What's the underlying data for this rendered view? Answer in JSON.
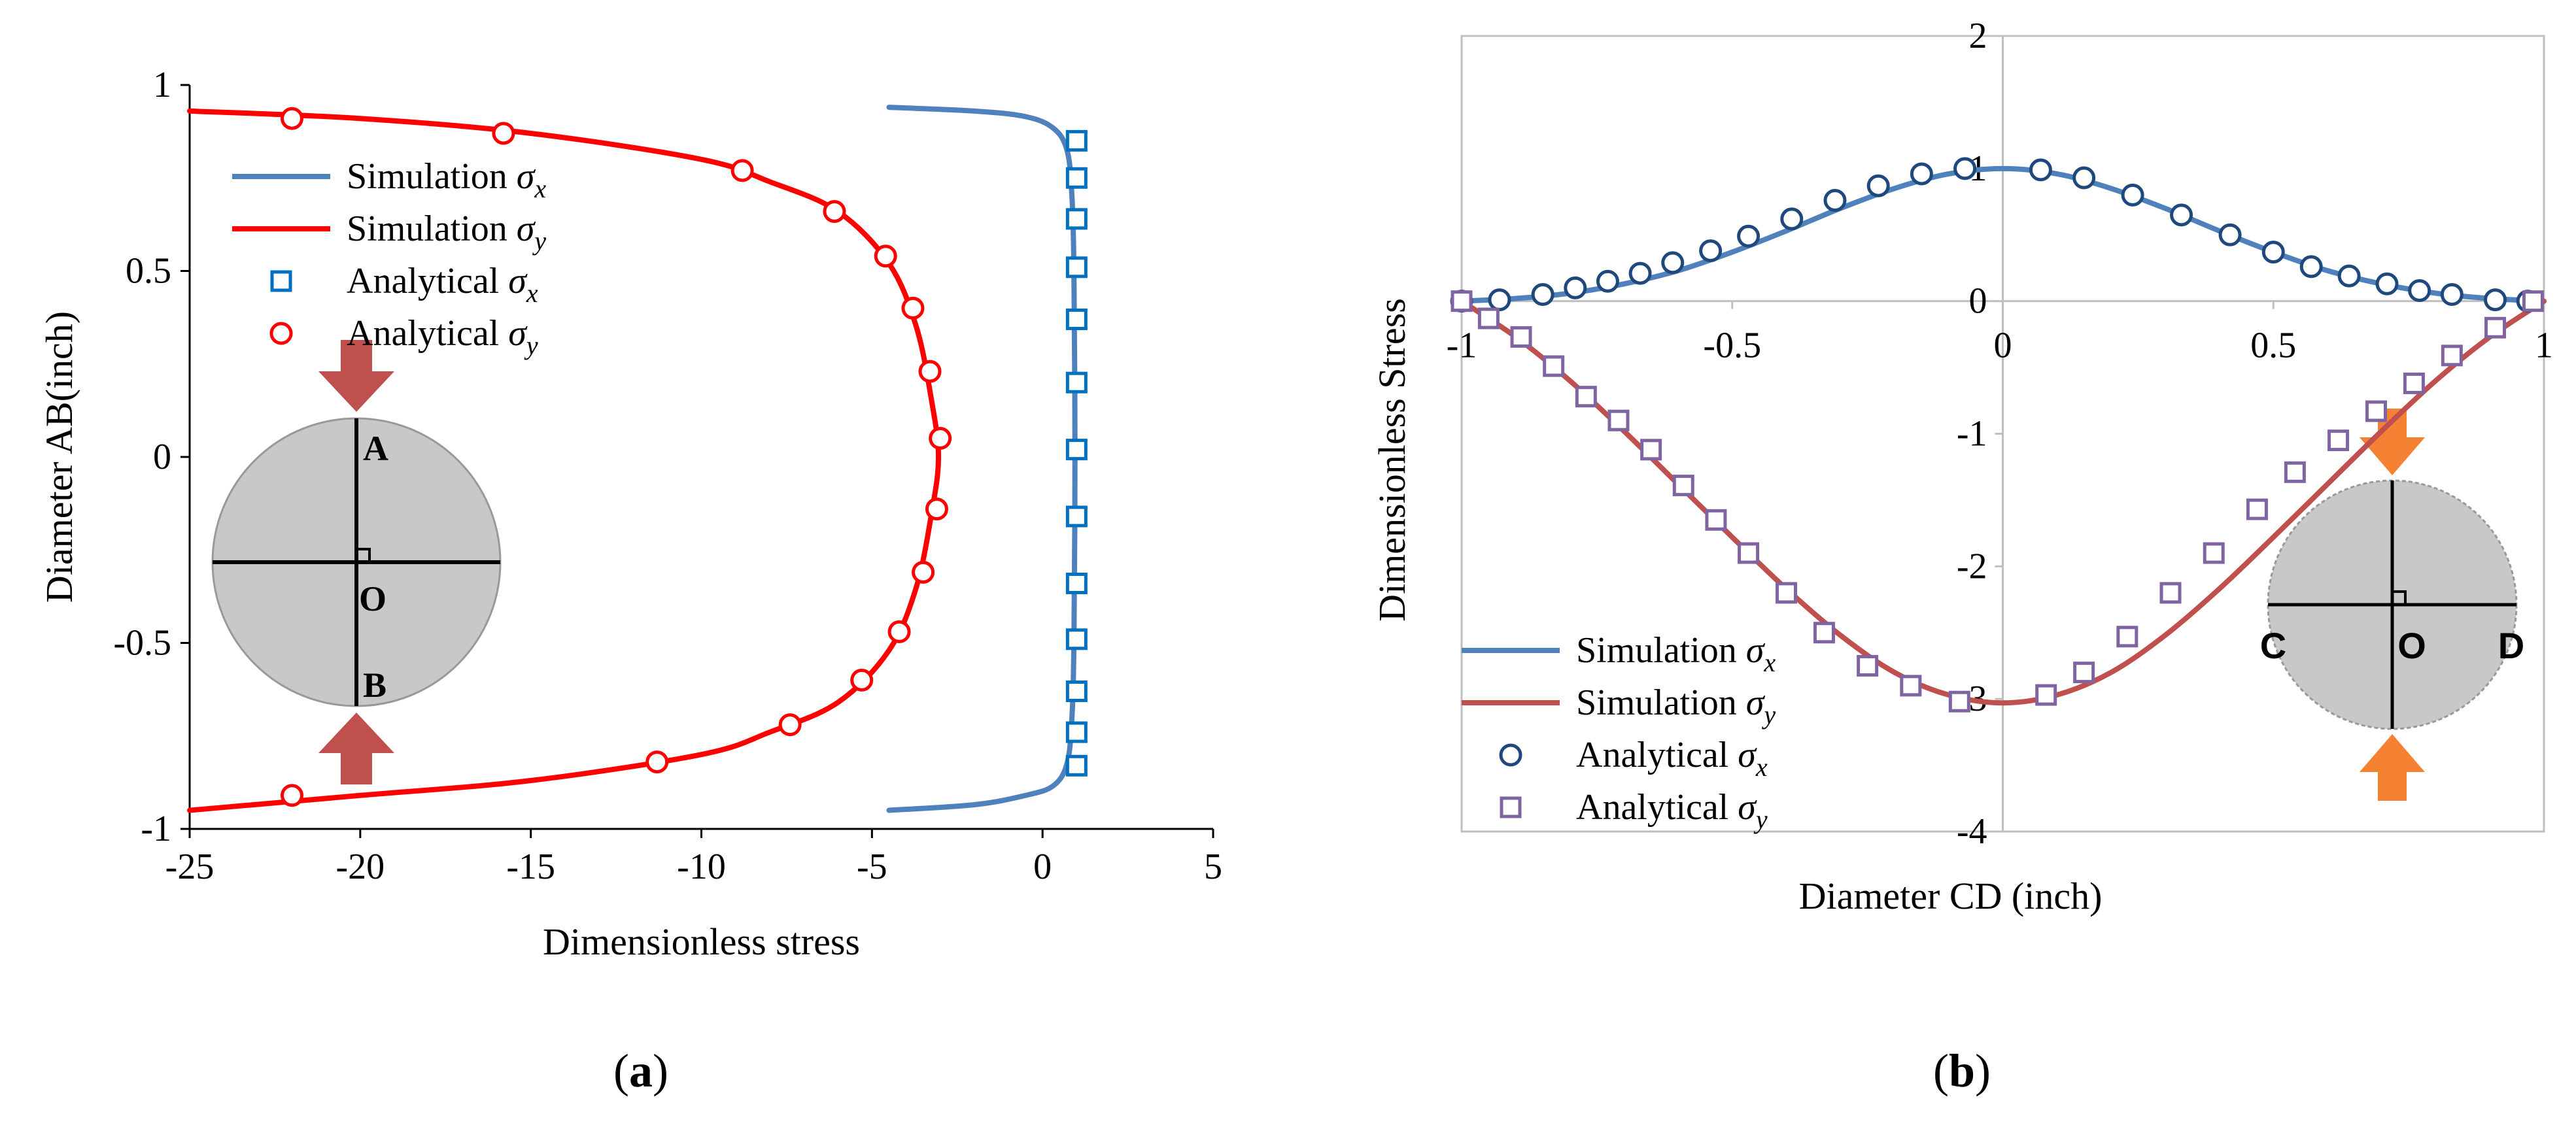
{
  "chart_data": [
    {
      "panel": "a",
      "type": "line",
      "panel_label": "a",
      "xlabel": "Dimensionless stress",
      "ylabel": "Diameter AB(inch)",
      "xlim": [
        -25,
        5
      ],
      "ylim": [
        -1,
        1
      ],
      "xticks": [
        "-25",
        "-20",
        "-15",
        "-10",
        "-5",
        "0",
        "5"
      ],
      "yticks": [
        "1",
        "0.5",
        "0",
        "-0.5",
        "-1"
      ],
      "xtick_values": [
        -25,
        -20,
        -15,
        -10,
        -5,
        0,
        5
      ],
      "ytick_values": [
        1,
        0.5,
        0,
        -0.5,
        -1
      ],
      "grid": false,
      "legend_position": "left",
      "legend": [
        {
          "label": "Simulation ",
          "sym": "σ",
          "sub": "x",
          "kind": "line",
          "color": "#4f81bd"
        },
        {
          "label": "Simulation ",
          "sym": "σ",
          "sub": "y",
          "kind": "line",
          "color": "#ff0000"
        },
        {
          "label": "Analytical ",
          "sym": "σ",
          "sub": "x",
          "kind": "square",
          "color": "#0070c0"
        },
        {
          "label": "Analytical ",
          "sym": "σ",
          "sub": "y",
          "kind": "circle",
          "color": "#ff0000"
        }
      ],
      "series": [
        {
          "name": "Simulation σx",
          "kind": "line",
          "color": "#4f81bd",
          "points": [
            [
              -4.5,
              0.94
            ],
            [
              -2,
              0.93
            ],
            [
              -0.5,
              0.915
            ],
            [
              0.3,
              0.885
            ],
            [
              0.7,
              0.83
            ],
            [
              0.85,
              0.72
            ],
            [
              0.92,
              0.5
            ],
            [
              0.95,
              0
            ],
            [
              0.92,
              -0.5
            ],
            [
              0.85,
              -0.72
            ],
            [
              0.7,
              -0.83
            ],
            [
              0.3,
              -0.885
            ],
            [
              -0.5,
              -0.91
            ],
            [
              -2,
              -0.935
            ],
            [
              -4.5,
              -0.95
            ]
          ]
        },
        {
          "name": "Simulation σy",
          "kind": "line",
          "color": "#ff0000",
          "points": [
            [
              -25,
              0.93
            ],
            [
              -20,
              0.91
            ],
            [
              -15,
              0.87
            ],
            [
              -10,
              0.8
            ],
            [
              -8,
              0.74
            ],
            [
              -6,
              0.66
            ],
            [
              -4.5,
              0.52
            ],
            [
              -3.7,
              0.35
            ],
            [
              -3.25,
              0.15
            ],
            [
              -3.05,
              0
            ],
            [
              -3.25,
              -0.15
            ],
            [
              -3.7,
              -0.35
            ],
            [
              -4.5,
              -0.52
            ],
            [
              -6,
              -0.66
            ],
            [
              -8,
              -0.74
            ],
            [
              -10,
              -0.8
            ],
            [
              -15,
              -0.87
            ],
            [
              -20,
              -0.91
            ],
            [
              -25,
              -0.95
            ]
          ]
        },
        {
          "name": "Analytical σx",
          "kind": "square",
          "color": "#0070c0",
          "points": [
            [
              1,
              0.85
            ],
            [
              1,
              0.75
            ],
            [
              1,
              0.64
            ],
            [
              1,
              0.51
            ],
            [
              1,
              0.37
            ],
            [
              1,
              0.2
            ],
            [
              1,
              0.02
            ],
            [
              1,
              -0.16
            ],
            [
              1,
              -0.34
            ],
            [
              1,
              -0.49
            ],
            [
              1,
              -0.63
            ],
            [
              1,
              -0.74
            ],
            [
              1,
              -0.83
            ]
          ]
        },
        {
          "name": "Analytical σy",
          "kind": "circle",
          "color": "#ff0000",
          "points": [
            [
              -22,
              0.91
            ],
            [
              -15.8,
              0.87
            ],
            [
              -8.8,
              0.77
            ],
            [
              -6.1,
              0.66
            ],
            [
              -4.6,
              0.54
            ],
            [
              -3.8,
              0.4
            ],
            [
              -3.3,
              0.23
            ],
            [
              -3.0,
              0.05
            ],
            [
              -3.1,
              -0.14
            ],
            [
              -3.5,
              -0.31
            ],
            [
              -4.2,
              -0.47
            ],
            [
              -5.3,
              -0.6
            ],
            [
              -7.4,
              -0.72
            ],
            [
              -11.3,
              -0.82
            ],
            [
              -22,
              -0.91
            ]
          ]
        }
      ],
      "inset": {
        "labels": {
          "top": "A",
          "center": "O",
          "bottom": "B"
        },
        "arrow_color": "#c0504d",
        "disk_color": "#c8c8c8"
      }
    },
    {
      "panel": "b",
      "type": "line",
      "panel_label": "b",
      "xlabel": "Diameter CD (inch)",
      "ylabel": "Dimensionless Stress",
      "xlim": [
        -1,
        1
      ],
      "ylim": [
        -4,
        2
      ],
      "xticks": [
        "-1",
        "-0.5",
        "0",
        "0.5",
        "1"
      ],
      "yticks": [
        "2",
        "1",
        "0",
        "-1",
        "-2",
        "-3",
        "-4"
      ],
      "xtick_values": [
        -1,
        -0.5,
        0,
        0.5,
        1
      ],
      "ytick_values": [
        2,
        1,
        0,
        -1,
        -2,
        -3,
        -4
      ],
      "grid": false,
      "legend_position": "bottom-left",
      "legend": [
        {
          "label": "Simulation ",
          "sym": "σ",
          "sub": "x",
          "kind": "line",
          "color": "#4f81bd"
        },
        {
          "label": "Simulation ",
          "sym": "σ",
          "sub": "y",
          "kind": "line",
          "color": "#c0504d"
        },
        {
          "label": "Analytical ",
          "sym": "σ",
          "sub": "x",
          "kind": "circle",
          "color": "#1f497d"
        },
        {
          "label": "Analytical ",
          "sym": "σ",
          "sub": "y",
          "kind": "square",
          "color": "#8064a2"
        }
      ],
      "series": [
        {
          "name": "Simulation σx",
          "kind": "line",
          "color": "#4f81bd",
          "points": [
            [
              -1,
              0
            ],
            [
              -0.9,
              0.02
            ],
            [
              -0.8,
              0.06
            ],
            [
              -0.7,
              0.13
            ],
            [
              -0.6,
              0.23
            ],
            [
              -0.5,
              0.37
            ],
            [
              -0.4,
              0.53
            ],
            [
              -0.3,
              0.7
            ],
            [
              -0.2,
              0.85
            ],
            [
              -0.1,
              0.96
            ],
            [
              0,
              1
            ],
            [
              0.1,
              0.96
            ],
            [
              0.2,
              0.85
            ],
            [
              0.3,
              0.7
            ],
            [
              0.4,
              0.53
            ],
            [
              0.5,
              0.37
            ],
            [
              0.6,
              0.23
            ],
            [
              0.7,
              0.13
            ],
            [
              0.8,
              0.06
            ],
            [
              0.9,
              0.02
            ],
            [
              1,
              0
            ]
          ]
        },
        {
          "name": "Simulation σy",
          "kind": "line",
          "color": "#c0504d",
          "points": [
            [
              -1,
              0
            ],
            [
              -0.9,
              -0.27
            ],
            [
              -0.8,
              -0.6
            ],
            [
              -0.7,
              -0.98
            ],
            [
              -0.6,
              -1.38
            ],
            [
              -0.5,
              -1.78
            ],
            [
              -0.4,
              -2.17
            ],
            [
              -0.3,
              -2.52
            ],
            [
              -0.2,
              -2.8
            ],
            [
              -0.1,
              -2.97
            ],
            [
              0,
              -3.03
            ],
            [
              0.1,
              -2.97
            ],
            [
              0.2,
              -2.8
            ],
            [
              0.3,
              -2.52
            ],
            [
              0.4,
              -2.17
            ],
            [
              0.5,
              -1.78
            ],
            [
              0.6,
              -1.38
            ],
            [
              0.7,
              -0.98
            ],
            [
              0.8,
              -0.6
            ],
            [
              0.9,
              -0.27
            ],
            [
              1,
              0
            ]
          ]
        },
        {
          "name": "Analytical σx",
          "kind": "circle",
          "color": "#1f497d",
          "points": [
            [
              -1,
              0
            ],
            [
              -0.93,
              0.01
            ],
            [
              -0.85,
              0.05
            ],
            [
              -0.79,
              0.1
            ],
            [
              -0.73,
              0.15
            ],
            [
              -0.67,
              0.21
            ],
            [
              -0.61,
              0.29
            ],
            [
              -0.54,
              0.38
            ],
            [
              -0.47,
              0.49
            ],
            [
              -0.39,
              0.62
            ],
            [
              -0.31,
              0.76
            ],
            [
              -0.23,
              0.87
            ],
            [
              -0.15,
              0.96
            ],
            [
              -0.07,
              1
            ],
            [
              0.07,
              0.99
            ],
            [
              0.15,
              0.93
            ],
            [
              0.24,
              0.8
            ],
            [
              0.33,
              0.65
            ],
            [
              0.42,
              0.5
            ],
            [
              0.5,
              0.37
            ],
            [
              0.57,
              0.26
            ],
            [
              0.64,
              0.19
            ],
            [
              0.71,
              0.13
            ],
            [
              0.77,
              0.08
            ],
            [
              0.83,
              0.05
            ],
            [
              0.91,
              0.01
            ],
            [
              0.97,
              0
            ]
          ]
        },
        {
          "name": "Analytical σy",
          "kind": "square",
          "color": "#8064a2",
          "points": [
            [
              -1,
              0
            ],
            [
              -0.95,
              -0.13
            ],
            [
              -0.89,
              -0.27
            ],
            [
              -0.83,
              -0.49
            ],
            [
              -0.77,
              -0.72
            ],
            [
              -0.71,
              -0.9
            ],
            [
              -0.65,
              -1.12
            ],
            [
              -0.59,
              -1.39
            ],
            [
              -0.53,
              -1.65
            ],
            [
              -0.47,
              -1.9
            ],
            [
              -0.4,
              -2.2
            ],
            [
              -0.33,
              -2.5
            ],
            [
              -0.25,
              -2.75
            ],
            [
              -0.17,
              -2.9
            ],
            [
              -0.08,
              -3.02
            ],
            [
              0.08,
              -2.97
            ],
            [
              0.15,
              -2.8
            ],
            [
              0.23,
              -2.53
            ],
            [
              0.31,
              -2.2
            ],
            [
              0.39,
              -1.9
            ],
            [
              0.47,
              -1.57
            ],
            [
              0.54,
              -1.29
            ],
            [
              0.62,
              -1.05
            ],
            [
              0.69,
              -0.83
            ],
            [
              0.76,
              -0.62
            ],
            [
              0.83,
              -0.41
            ],
            [
              0.91,
              -0.2
            ],
            [
              0.98,
              0
            ]
          ]
        }
      ],
      "inset": {
        "labels": {
          "left": "C",
          "center": "O",
          "right": "D"
        },
        "arrow_color": "#f58232",
        "disk_color": "#c8c8c8"
      }
    }
  ]
}
